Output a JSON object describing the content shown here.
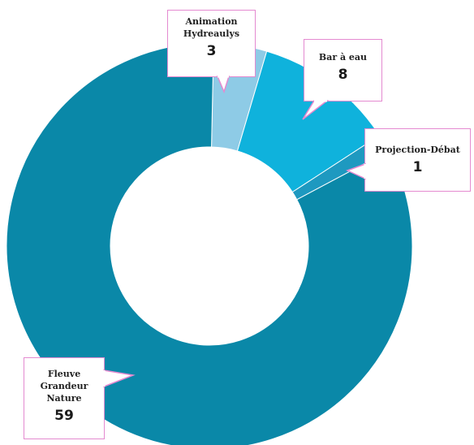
{
  "chart_data": {
    "type": "pie",
    "variant": "donut",
    "categories": [
      "Fleuve Grandeur Nature",
      "Animation Hydreaulys",
      "Bar à eau",
      "Projection-Débat"
    ],
    "values": [
      59,
      3,
      8,
      1
    ],
    "colors": [
      "#0a88a8",
      "#8ecbe6",
      "#0fb2dc",
      "#1e99c0"
    ],
    "labels": [
      {
        "lines": [
          "Animation",
          "Hydreaulys"
        ],
        "value": "3"
      },
      {
        "lines": [
          "Bar à eau"
        ],
        "value": "8"
      },
      {
        "lines": [
          "Projection-Débat"
        ],
        "value": "1"
      },
      {
        "lines": [
          "Fleuve",
          "Grandeur",
          "Nature"
        ],
        "value": "59"
      }
    ]
  },
  "colors": {
    "callout_border": "#e48ad0",
    "background": "#ffffff"
  }
}
